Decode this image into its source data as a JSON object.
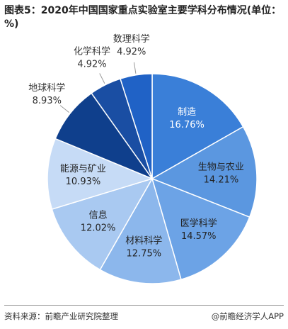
{
  "chart_data": {
    "type": "pie",
    "title": "图表5：2020年中国国家重点实验室主要学科分布情况(单位：%)",
    "categories": [
      "制造",
      "生物与农业",
      "医学科学",
      "材料科学",
      "信息",
      "能源与矿业",
      "地球科学",
      "化学科学",
      "数理科学"
    ],
    "values": [
      16.76,
      14.21,
      14.57,
      12.75,
      12.02,
      10.93,
      8.93,
      4.92,
      4.92
    ],
    "value_labels": [
      "16.76%",
      "14.21%",
      "14.57%",
      "12.75%",
      "12.02%",
      "10.93%",
      "8.93%",
      "4.92%",
      "4.92%"
    ],
    "colors": [
      "#3a7fd8",
      "#5b97e0",
      "#6ca3e6",
      "#8cb7ec",
      "#a9c9f1",
      "#c6dbf6",
      "#0f3f8c",
      "#1a4ea3",
      "#2062c6"
    ],
    "source": "资料来源：前瞻产业研究院整理",
    "credit": "@前瞻经济学人APP"
  }
}
